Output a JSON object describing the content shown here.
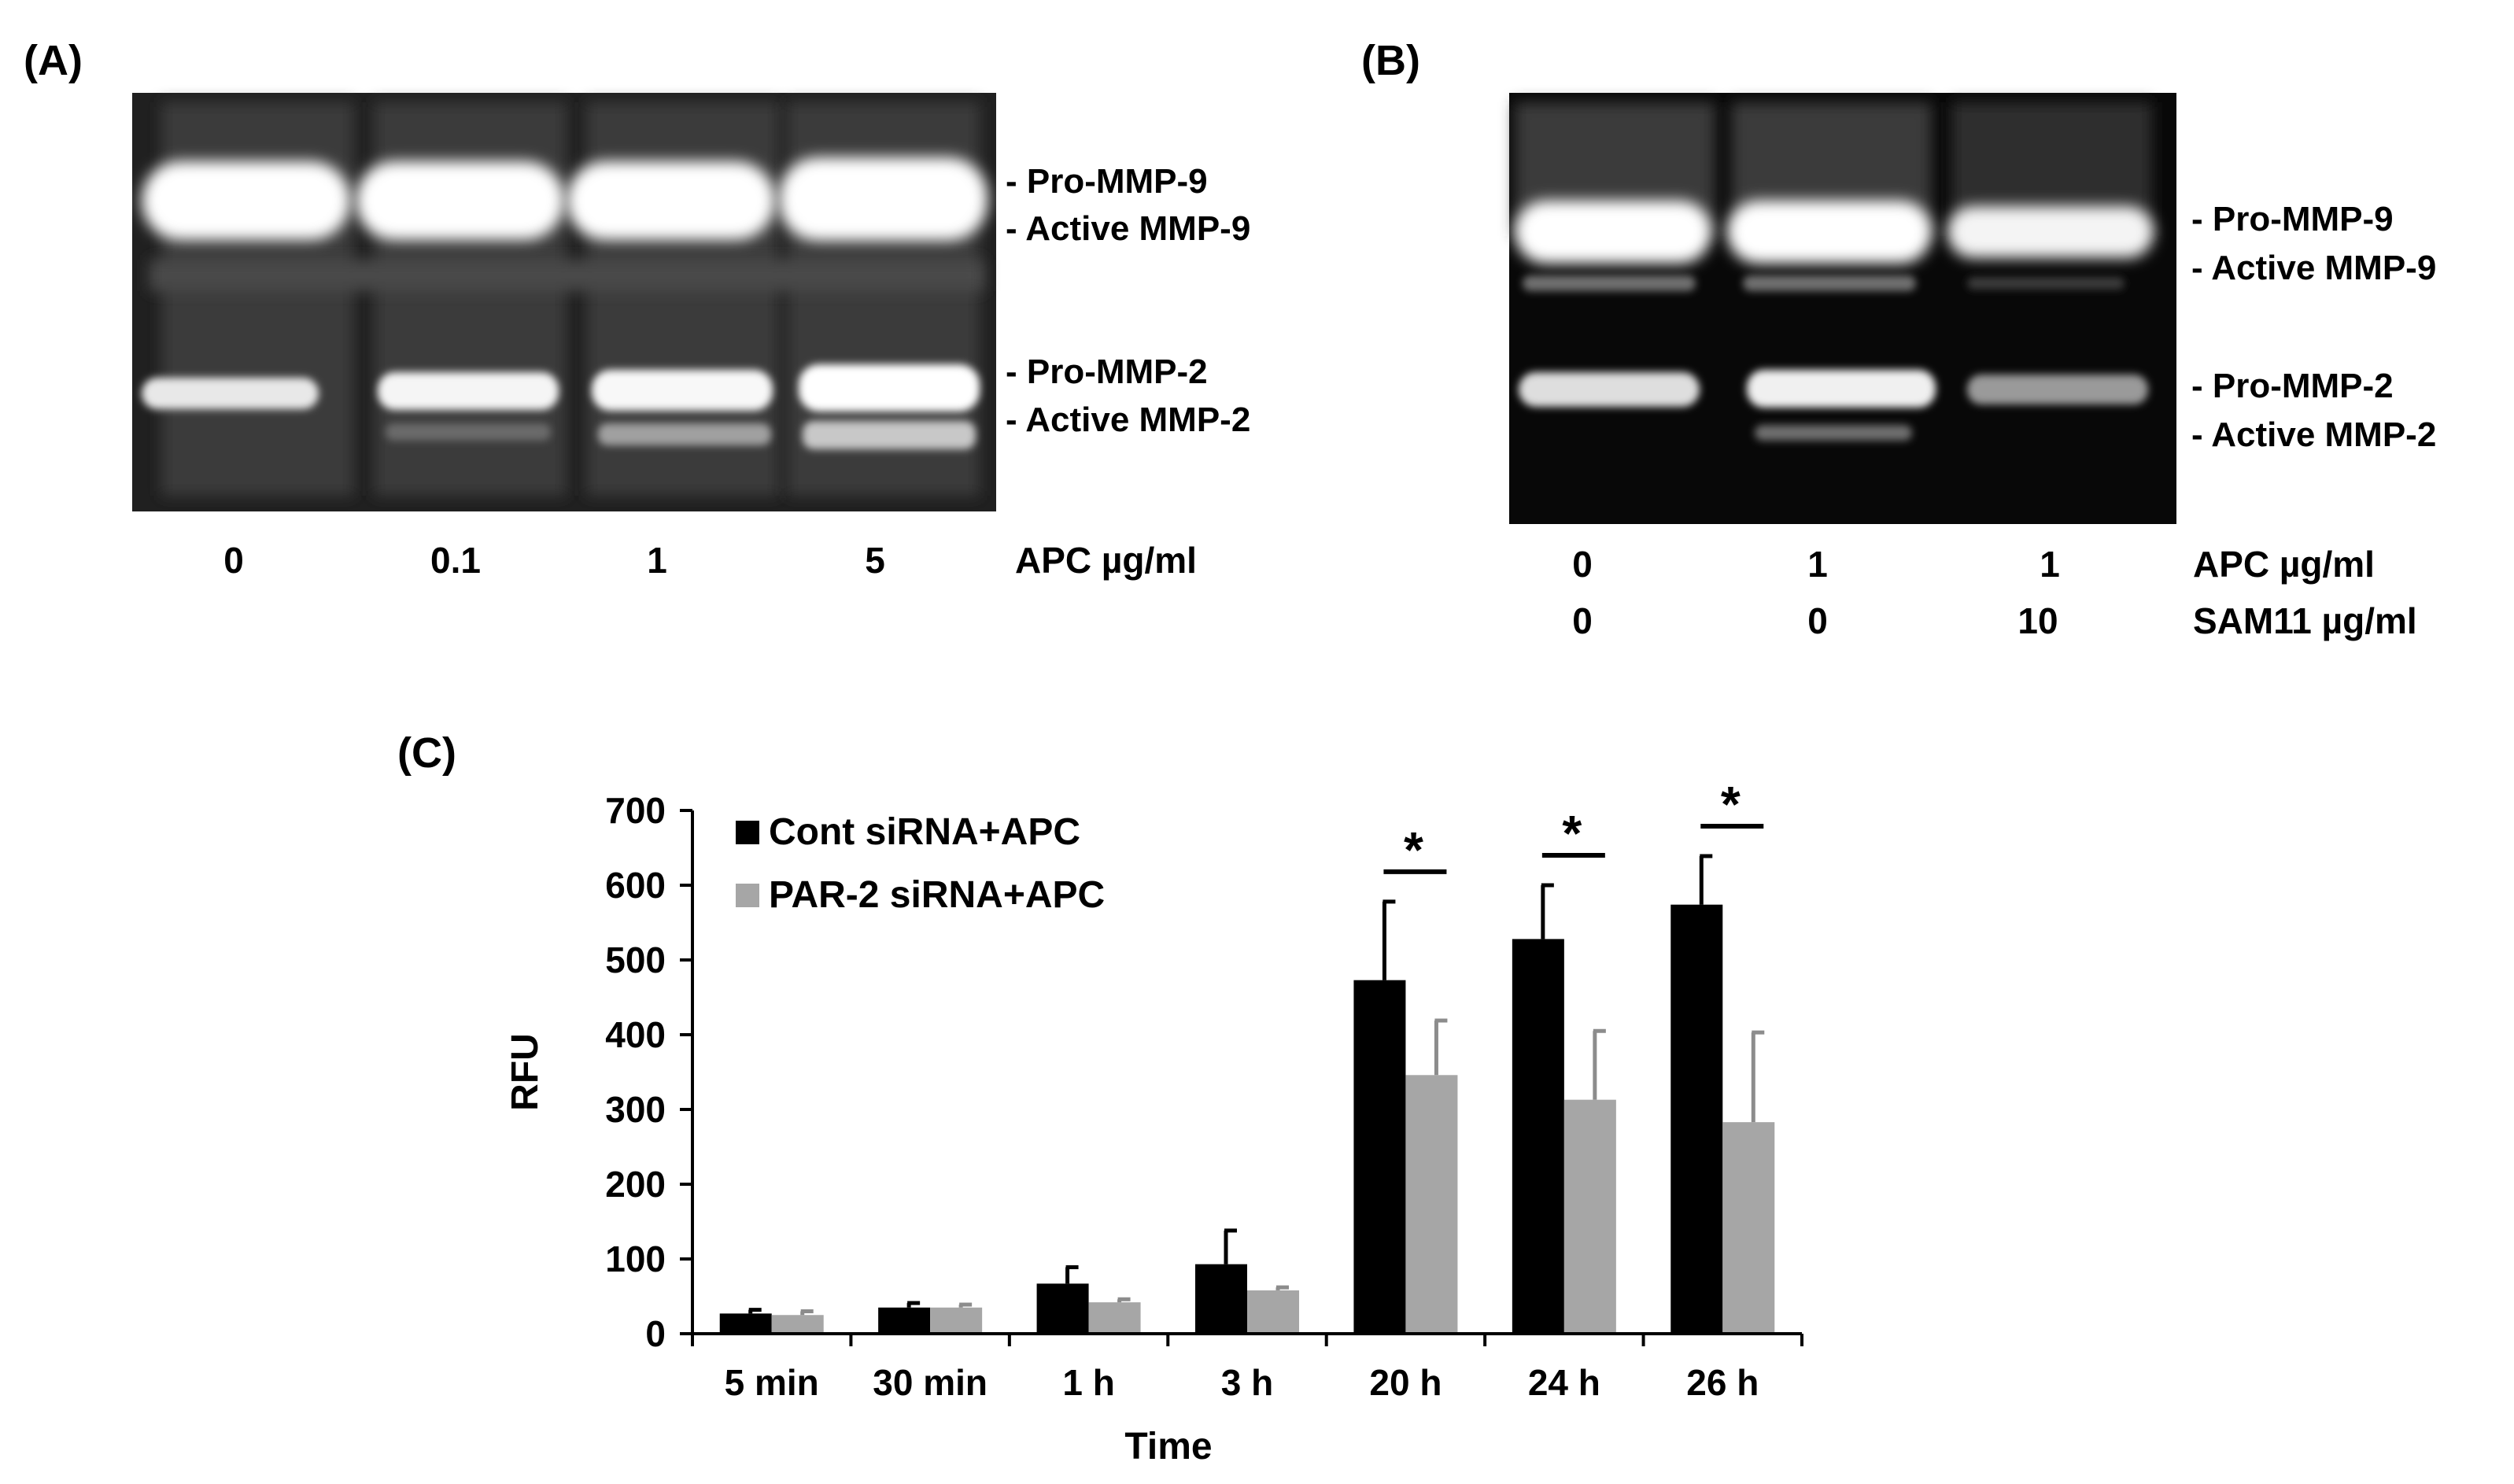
{
  "panels": {
    "A": {
      "label": "(A)",
      "band_labels": [
        "- Pro-MMP-9",
        "- Active  MMP-9",
        "- Pro-MMP-2",
        "- Active  MMP-2"
      ],
      "lane_values": [
        "0",
        "0.1",
        "1",
        "5"
      ],
      "condition_label": "APC µg/ml"
    },
    "B": {
      "label": "(B)",
      "band_labels": [
        "- Pro-MMP-9",
        "- Active  MMP-9",
        "- Pro-MMP-2",
        "- Active  MMP-2"
      ],
      "rows": [
        {
          "values": [
            "0",
            "1",
            "1"
          ],
          "label": "APC µg/ml"
        },
        {
          "values": [
            "0",
            "0",
            "10"
          ],
          "label": "SAM11 µg/ml"
        }
      ]
    },
    "C": {
      "label": "(C)"
    }
  },
  "chart_data": {
    "type": "bar",
    "title": "",
    "xlabel": "Time",
    "ylabel": "RFU",
    "ylim": [
      0,
      700
    ],
    "yticks": [
      0,
      100,
      200,
      300,
      400,
      500,
      600,
      700
    ],
    "categories": [
      "5 min",
      "30 min",
      "1 h",
      "3 h",
      "20 h",
      "24 h",
      "26 h"
    ],
    "series": [
      {
        "name": "Cont siRNA+APC",
        "color": "#000000",
        "values": [
          27,
          35,
          67,
          93,
          473,
          528,
          574
        ],
        "errors": [
          5,
          6,
          22,
          45,
          105,
          72,
          65
        ]
      },
      {
        "name": "PAR-2 siRNA+APC",
        "color": "#a6a6a6",
        "values": [
          25,
          35,
          42,
          58,
          346,
          313,
          283
        ],
        "errors": [
          5,
          4,
          4,
          4,
          73,
          92,
          120
        ]
      }
    ],
    "significance": [
      "",
      "",
      "",
      "",
      "*",
      "*",
      "*"
    ],
    "legend_position": "top-left"
  }
}
